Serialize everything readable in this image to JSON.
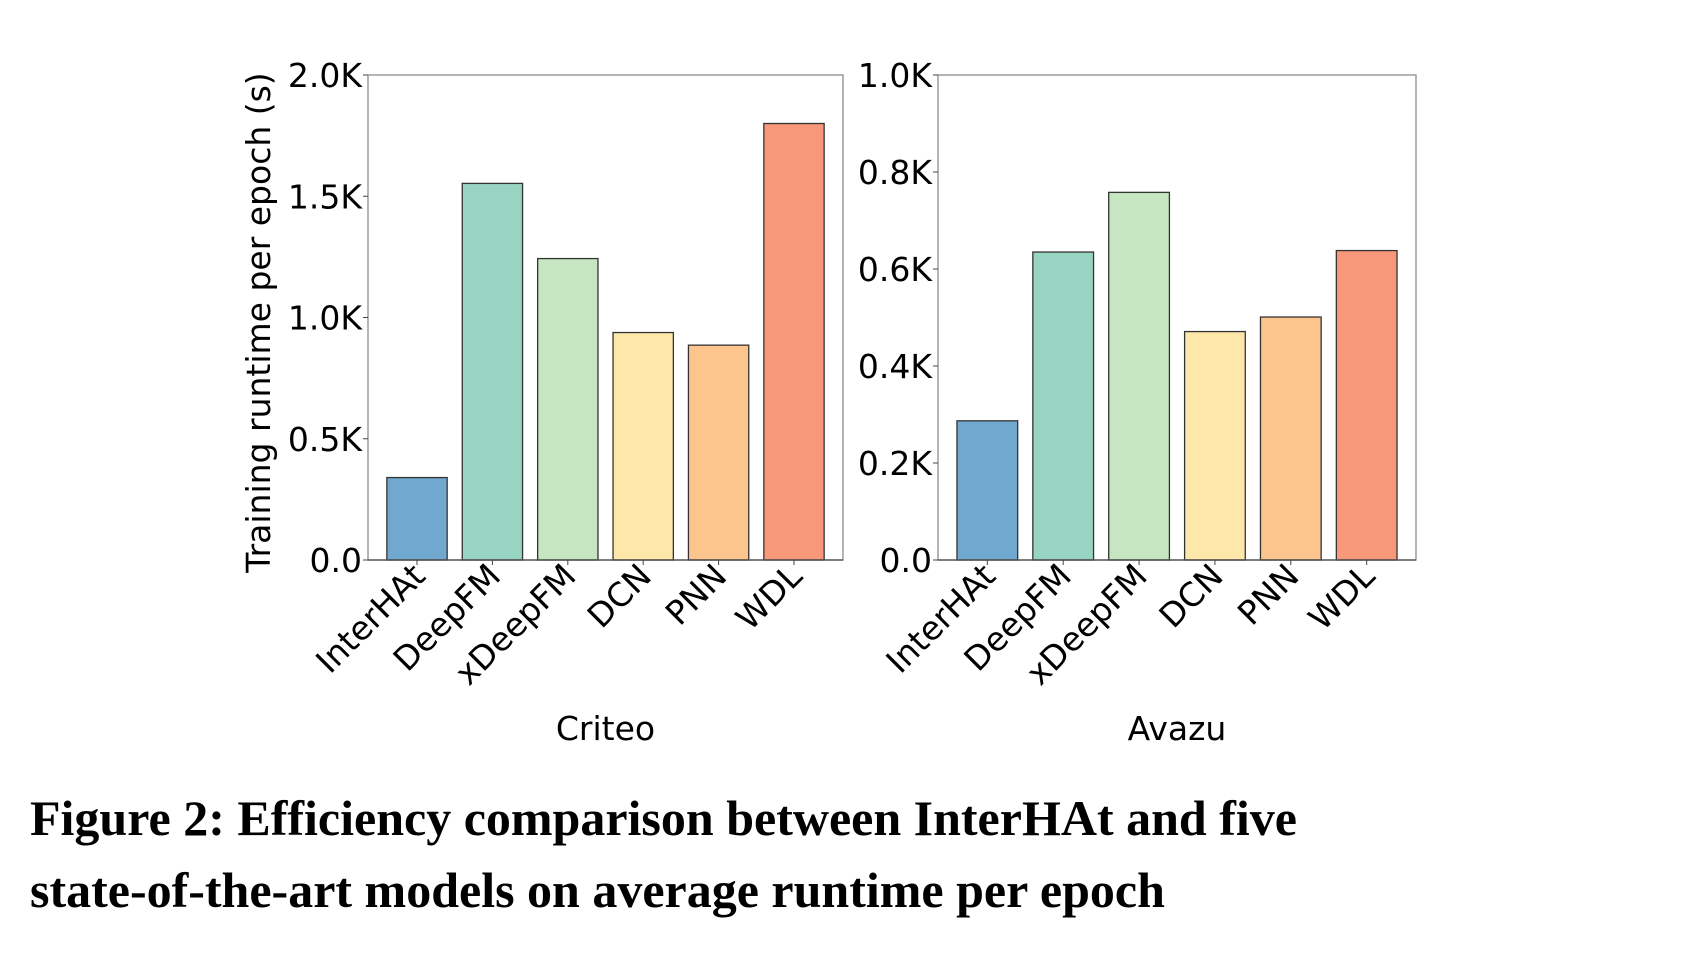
{
  "chart_data": [
    {
      "type": "bar",
      "title": "",
      "xlabel": "Criteo",
      "ylabel": "Training runtime per epoch (s)",
      "categories": [
        "InterHAt",
        "DeepFM",
        "xDeepFM",
        "DCN",
        "PNN",
        "WDL"
      ],
      "values": [
        340,
        1553,
        1243,
        938,
        886,
        1800
      ],
      "ylim": [
        0,
        2000
      ],
      "yticks": [
        0,
        500,
        1000,
        1500,
        2000
      ],
      "ytick_labels": [
        "0.0",
        "0.5K",
        "1.0K",
        "1.5K",
        "2.0K"
      ],
      "colors": [
        "#70a8cf",
        "#97d4c1",
        "#c6e6c1",
        "#fde8aa",
        "#fcc58e",
        "#f8987b"
      ],
      "grid": false
    },
    {
      "type": "bar",
      "title": "",
      "xlabel": "Avazu",
      "ylabel": "",
      "categories": [
        "InterHAt",
        "DeepFM",
        "xDeepFM",
        "DCN",
        "PNN",
        "WDL"
      ],
      "values": [
        287,
        635,
        758,
        471,
        501,
        638
      ],
      "ylim": [
        0,
        1000
      ],
      "yticks": [
        0,
        200,
        400,
        600,
        800,
        1000
      ],
      "ytick_labels": [
        "0.0",
        "0.2K",
        "0.4K",
        "0.6K",
        "0.8K",
        "1.0K"
      ],
      "colors": [
        "#70a8cf",
        "#97d4c1",
        "#c6e6c1",
        "#fde8aa",
        "#fcc58e",
        "#f8987b"
      ],
      "grid": false
    }
  ],
  "caption": {
    "line1": "Figure 2: Efficiency comparison between InterHAt and five",
    "line2": "state-of-the-art models on average runtime per epoch"
  }
}
